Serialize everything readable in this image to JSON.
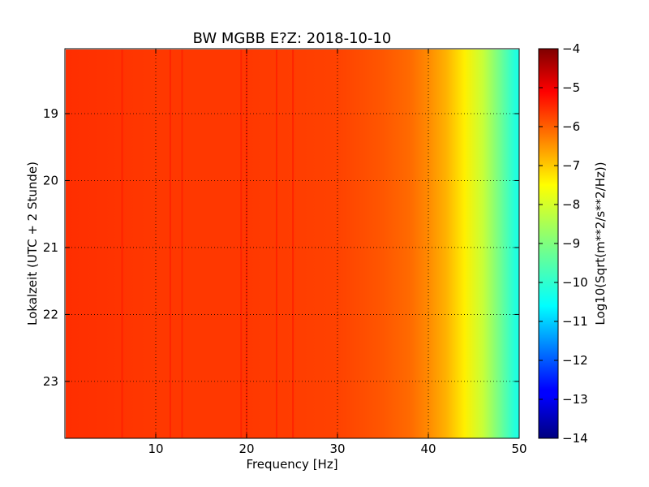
{
  "chart_data": {
    "type": "heatmap",
    "title": "BW MGBB E?Z: 2018-10-10",
    "xlabel": "Frequency [Hz]",
    "ylabel": "Lokalzeit (UTC + 2 Stunde)",
    "xlim": [
      0,
      50
    ],
    "ylim": [
      18.03,
      23.85
    ],
    "y_inverted": true,
    "x_ticks": [
      10,
      20,
      30,
      40,
      50
    ],
    "y_ticks": [
      19,
      20,
      21,
      22,
      23
    ],
    "grid": true,
    "colorbar": {
      "label": "Log10(Sqrt(m**2/s**2/Hz))",
      "range": [
        -14,
        -4
      ],
      "ticks": [
        -4,
        -5,
        -6,
        -7,
        -8,
        -9,
        -10,
        -11,
        -12,
        -13,
        -14
      ],
      "colormap": "jet"
    },
    "spectrum_profile": {
      "frequency_hz": [
        0,
        5,
        10,
        15,
        20,
        25,
        30,
        35,
        38,
        40,
        42,
        44,
        46,
        48,
        49.5,
        50
      ],
      "log_amplitude": [
        -5.7,
        -5.75,
        -5.8,
        -5.8,
        -5.8,
        -5.85,
        -5.9,
        -6.1,
        -6.3,
        -6.6,
        -7.0,
        -7.6,
        -8.3,
        -9.2,
        -9.9,
        -10.0
      ]
    },
    "spectral_lines_hz": [
      6.3,
      11.6,
      12.9,
      19.4,
      20.0,
      23.3,
      25.1
    ],
    "colors": {
      "dark_red": "#7f0000",
      "red": "#ff2000",
      "orange": "#ff8000",
      "yellow": "#ffff00",
      "cyan": "#00ffff",
      "blue": "#0000ff",
      "dark_blue": "#00007f"
    }
  }
}
